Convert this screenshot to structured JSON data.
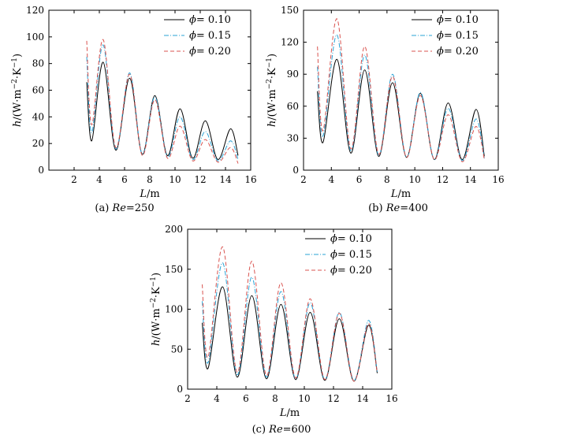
{
  "chart_data": [
    {
      "type": "line",
      "caption_prefix": "(a)",
      "caption_var": "Re",
      "caption_eq": "=250",
      "xlabel_var": "L",
      "xlabel_unit": "/m",
      "ylabel_var": "h",
      "ylabel_unit": "/(W·m",
      "ylabel_exp1": "−2",
      "ylabel_mid": "·K",
      "ylabel_exp2": "−1",
      "ylabel_close": ")",
      "xlim": [
        0,
        16
      ],
      "ylim": [
        0,
        120
      ],
      "xticks": [
        "2",
        "4",
        "6",
        "8",
        "10",
        "12",
        "14",
        "16"
      ],
      "yticks": [
        "0",
        "20",
        "40",
        "60",
        "80",
        "100",
        "120"
      ],
      "legend_position": "top-right",
      "series": [
        {
          "name": "= 0.10",
          "symbol": "ϕ",
          "color": "#000000",
          "dash": "solid",
          "x": [
            3.0,
            3.4,
            4.3,
            5.3,
            6.4,
            7.4,
            8.4,
            9.4,
            10.4,
            11.4,
            12.4,
            13.4,
            14.4,
            15.0
          ],
          "y": [
            66,
            22,
            81,
            15,
            69,
            12,
            56,
            11,
            46,
            9,
            37,
            8,
            31,
            11
          ]
        },
        {
          "name": "= 0.15",
          "symbol": "ϕ",
          "color": "#2aa3d6",
          "dash": "dashdot",
          "x": [
            3.0,
            3.4,
            4.3,
            5.3,
            6.4,
            7.4,
            8.4,
            9.4,
            10.4,
            11.4,
            12.4,
            13.4,
            14.4,
            15.0
          ],
          "y": [
            85,
            28,
            94,
            16,
            73,
            12,
            55,
            10,
            40,
            8,
            29,
            7,
            22,
            8
          ]
        },
        {
          "name": "= 0.20",
          "symbol": "ϕ",
          "color": "#d9534f",
          "dash": "dash",
          "x": [
            3.0,
            3.4,
            4.3,
            5.3,
            6.4,
            7.4,
            8.4,
            9.4,
            10.4,
            11.4,
            12.4,
            13.4,
            14.4,
            15.0
          ],
          "y": [
            97,
            34,
            98,
            17,
            72,
            11,
            53,
            9,
            33,
            7,
            23,
            6,
            17,
            5
          ]
        }
      ]
    },
    {
      "type": "line",
      "caption_prefix": "(b)",
      "caption_var": "Re",
      "caption_eq": "=400",
      "xlabel_var": "L",
      "xlabel_unit": "/m",
      "ylabel_var": "h",
      "ylabel_unit": "/(W·m",
      "ylabel_exp1": "−2",
      "ylabel_mid": "·K",
      "ylabel_exp2": "−1",
      "ylabel_close": ")",
      "xlim": [
        2,
        16
      ],
      "ylim": [
        0,
        150
      ],
      "xticks": [
        "2",
        "4",
        "6",
        "8",
        "10",
        "12",
        "14",
        "16"
      ],
      "yticks": [
        "0",
        "30",
        "60",
        "90",
        "120",
        "150"
      ],
      "legend_position": "top-right",
      "series": [
        {
          "name": "= 0.10",
          "symbol": "ϕ",
          "color": "#000000",
          "dash": "solid",
          "x": [
            3.0,
            3.4,
            4.4,
            5.4,
            6.4,
            7.4,
            8.4,
            9.4,
            10.4,
            11.4,
            12.4,
            13.4,
            14.4,
            15.0
          ],
          "y": [
            74,
            26,
            104,
            16,
            94,
            13,
            82,
            12,
            72,
            10,
            63,
            10,
            57,
            13
          ]
        },
        {
          "name": "= 0.15",
          "symbol": "ϕ",
          "color": "#2aa3d6",
          "dash": "dashdot",
          "x": [
            3.0,
            3.4,
            4.4,
            5.4,
            6.4,
            7.4,
            8.4,
            9.4,
            10.4,
            11.4,
            12.4,
            13.4,
            14.4,
            15.0
          ],
          "y": [
            97,
            32,
            127,
            18,
            108,
            14,
            90,
            12,
            73,
            10,
            58,
            9,
            48,
            11
          ]
        },
        {
          "name": "= 0.20",
          "symbol": "ϕ",
          "color": "#d9534f",
          "dash": "dash",
          "x": [
            3.0,
            3.4,
            4.4,
            5.4,
            6.4,
            7.4,
            8.4,
            9.4,
            10.4,
            11.4,
            12.4,
            13.4,
            14.4,
            15.0
          ],
          "y": [
            116,
            37,
            142,
            20,
            116,
            15,
            88,
            12,
            70,
            10,
            52,
            8,
            41,
            10
          ]
        }
      ]
    },
    {
      "type": "line",
      "caption_prefix": "(c)",
      "caption_var": "Re",
      "caption_eq": "=600",
      "xlabel_var": "L",
      "xlabel_unit": "/m",
      "ylabel_var": "h",
      "ylabel_unit": "/(W·m",
      "ylabel_exp1": "−2",
      "ylabel_mid": "·K",
      "ylabel_exp2": "−1",
      "ylabel_close": ")",
      "xlim": [
        2,
        16
      ],
      "ylim": [
        0,
        200
      ],
      "xticks": [
        "2",
        "4",
        "6",
        "8",
        "10",
        "12",
        "14",
        "16"
      ],
      "yticks": [
        "0",
        "50",
        "100",
        "150",
        "200"
      ],
      "legend_position": "top-right",
      "series": [
        {
          "name": "= 0.10",
          "symbol": "ϕ",
          "color": "#000000",
          "dash": "solid",
          "x": [
            3.0,
            3.4,
            4.4,
            5.4,
            6.4,
            7.4,
            8.4,
            9.4,
            10.4,
            11.4,
            12.4,
            13.4,
            14.4,
            15.0
          ],
          "y": [
            83,
            26,
            128,
            15,
            117,
            13,
            106,
            12,
            96,
            11,
            88,
            10,
            80,
            20
          ]
        },
        {
          "name": "= 0.15",
          "symbol": "ϕ",
          "color": "#2aa3d6",
          "dash": "dashdot",
          "x": [
            3.0,
            3.4,
            4.4,
            5.4,
            6.4,
            7.4,
            8.4,
            9.4,
            10.4,
            11.4,
            12.4,
            13.4,
            14.4,
            15.0
          ],
          "y": [
            110,
            33,
            158,
            18,
            140,
            15,
            122,
            13,
            108,
            12,
            96,
            11,
            86,
            22
          ]
        },
        {
          "name": "= 0.20",
          "symbol": "ϕ",
          "color": "#d9534f",
          "dash": "dash",
          "x": [
            3.0,
            3.4,
            4.4,
            5.4,
            6.4,
            7.4,
            8.4,
            9.4,
            10.4,
            11.4,
            12.4,
            13.4,
            14.4,
            15.0
          ],
          "y": [
            131,
            40,
            178,
            21,
            160,
            17,
            133,
            14,
            113,
            12,
            95,
            10,
            82,
            21
          ]
        }
      ]
    }
  ]
}
